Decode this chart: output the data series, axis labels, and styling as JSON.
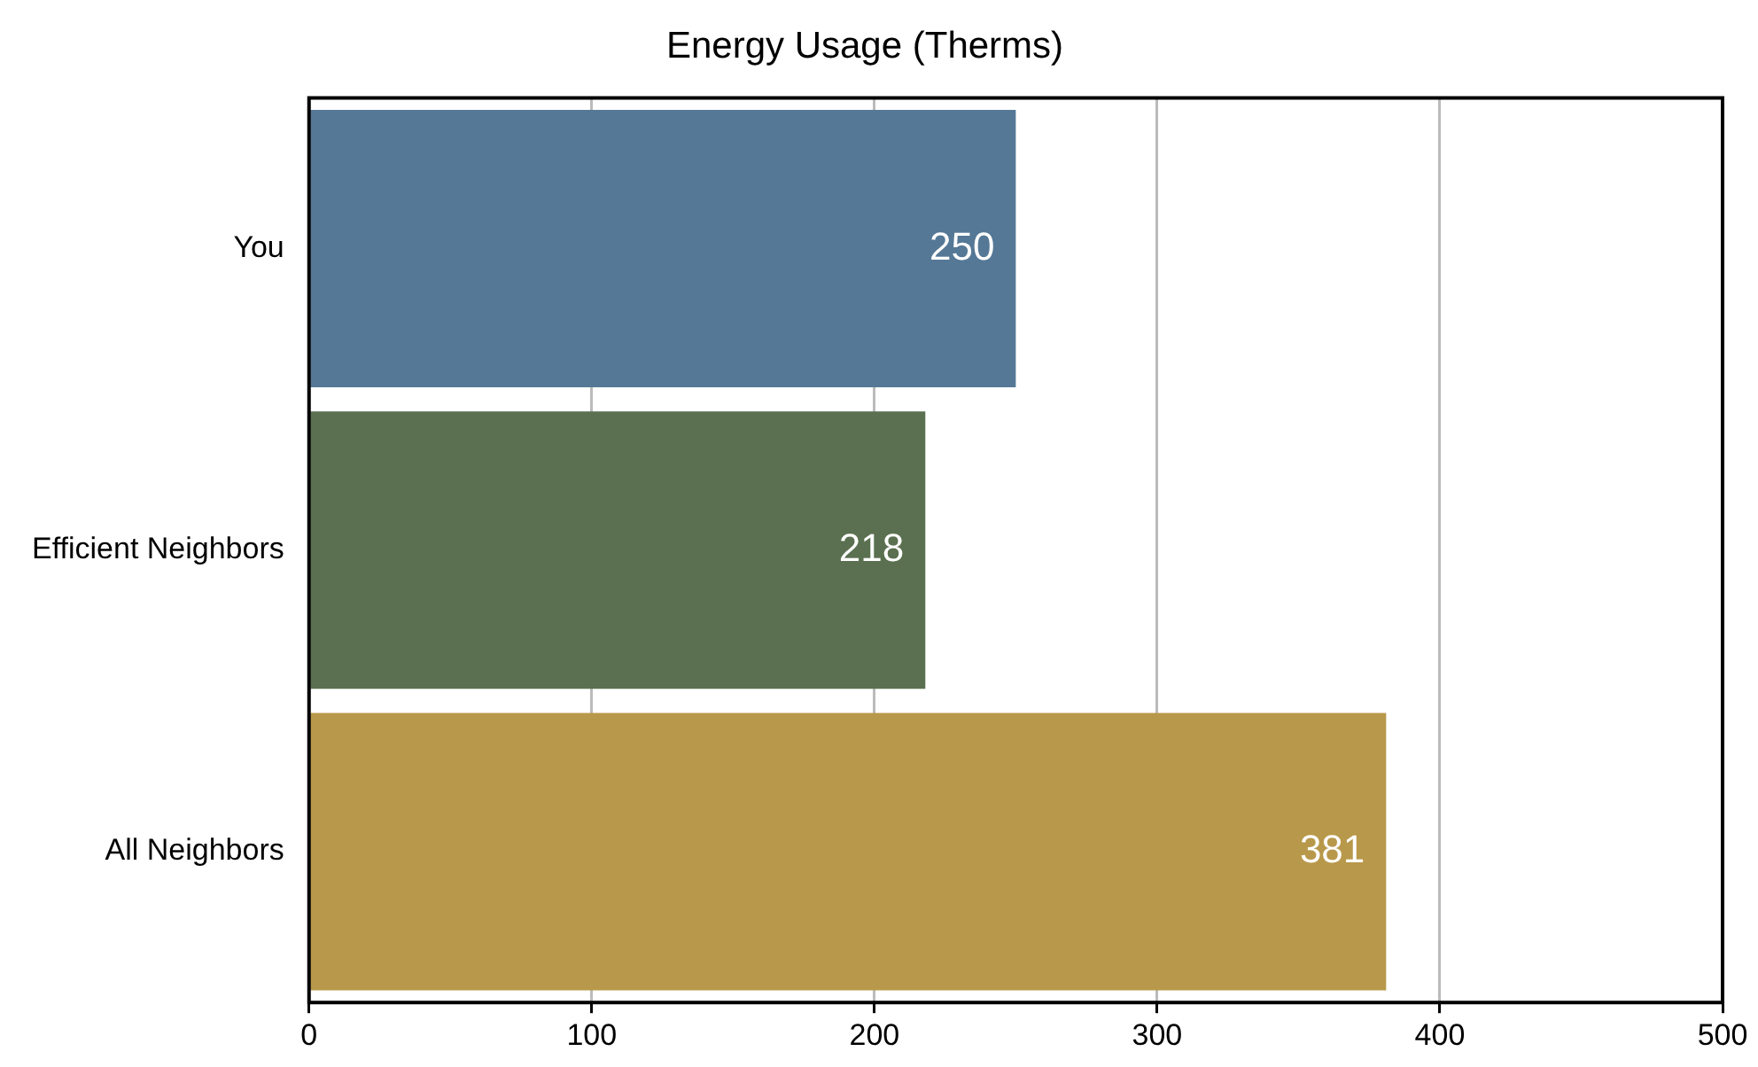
{
  "chart_data": {
    "type": "bar",
    "orientation": "horizontal",
    "title": "Energy Usage (Therms)",
    "categories": [
      "You",
      "Efficient Neighbors",
      "All Neighbors"
    ],
    "values": [
      250,
      218,
      381
    ],
    "colors": [
      "#557896",
      "#5a7050",
      "#b8984a"
    ],
    "xlim": [
      0,
      500
    ],
    "xticks": [
      0,
      100,
      200,
      300,
      400,
      500
    ],
    "grid": "x",
    "data_labels": true
  }
}
